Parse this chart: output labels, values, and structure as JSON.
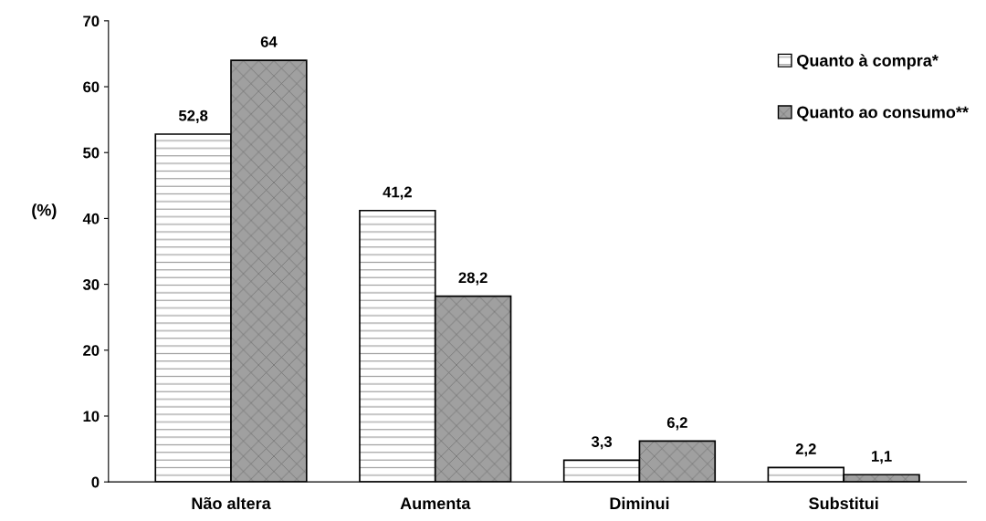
{
  "chart_data": {
    "type": "bar",
    "ylabel": "(%)",
    "categories": [
      "Não altera",
      "Aumenta",
      "Diminui",
      "Substitui"
    ],
    "series": [
      {
        "name": "Quanto à compra*",
        "color": "#ffffff",
        "values": [
          52.8,
          41.2,
          3.3,
          2.2
        ],
        "value_labels": [
          "52,8",
          "41,2",
          "3,3",
          "2,2"
        ]
      },
      {
        "name": "Quanto ao consumo**",
        "color": "#a0a0a0",
        "values": [
          64,
          28.2,
          6.2,
          1.1
        ],
        "value_labels": [
          "64",
          "28,2",
          "6,2",
          "1,1"
        ]
      }
    ],
    "ylim": [
      0,
      70
    ],
    "yticks": [
      0,
      10,
      20,
      30,
      40,
      50,
      60,
      70
    ],
    "grid": false,
    "legend": "top right"
  }
}
